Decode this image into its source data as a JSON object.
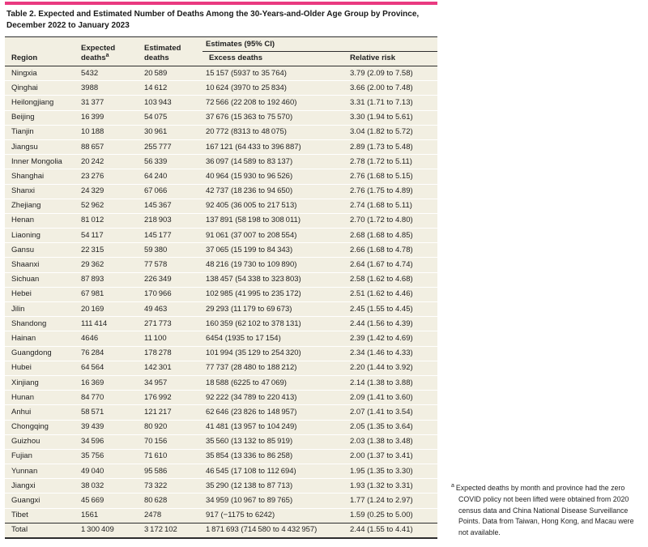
{
  "accent_color": "#e93a80",
  "colors": {
    "row_background": "#f2efe2",
    "row_separator": "#ffffff",
    "rule": "#2d2d2d",
    "text": "#1f1f1f"
  },
  "table": {
    "title": "Table 2. Expected and Estimated Number of Deaths Among the 30-Years-and-Older Age Group by Province, December 2022 to January 2023",
    "columns": {
      "region": "Region",
      "expected": "Expected deaths",
      "expected_sup": "a",
      "estimated": "Estimated deaths",
      "estimates_group": "Estimates (95% CI)",
      "excess": "Excess deaths",
      "relative": "Relative risk"
    },
    "rows": [
      [
        "Ningxia",
        "5432",
        "20 589",
        "15 157 (5937 to 35 764)",
        "3.79 (2.09 to 7.58)"
      ],
      [
        "Qinghai",
        "3988",
        "14 612",
        "10 624 (3970 to 25 834)",
        "3.66 (2.00 to 7.48)"
      ],
      [
        "Heilongjiang",
        "31 377",
        "103 943",
        "72 566 (22 208 to 192 460)",
        "3.31 (1.71 to 7.13)"
      ],
      [
        "Beijing",
        "16 399",
        "54 075",
        "37 676 (15 363 to 75 570)",
        "3.30 (1.94 to 5.61)"
      ],
      [
        "Tianjin",
        "10 188",
        "30 961",
        "20 772 (8313 to 48 075)",
        "3.04 (1.82 to 5.72)"
      ],
      [
        "Jiangsu",
        "88 657",
        "255 777",
        "167 121 (64 433 to 396 887)",
        "2.89 (1.73 to 5.48)"
      ],
      [
        "Inner Mongolia",
        "20 242",
        "56 339",
        "36 097 (14 589 to 83 137)",
        "2.78 (1.72 to 5.11)"
      ],
      [
        "Shanghai",
        "23 276",
        "64 240",
        "40 964 (15 930 to 96 526)",
        "2.76 (1.68 to 5.15)"
      ],
      [
        "Shanxi",
        "24 329",
        "67 066",
        "42 737 (18 236 to 94 650)",
        "2.76 (1.75 to 4.89)"
      ],
      [
        "Zhejiang",
        "52 962",
        "145 367",
        "92 405 (36 005 to 217 513)",
        "2.74 (1.68 to 5.11)"
      ],
      [
        "Henan",
        "81 012",
        "218 903",
        "137 891 (58 198 to 308 011)",
        "2.70 (1.72 to 4.80)"
      ],
      [
        "Liaoning",
        "54 117",
        "145 177",
        "91 061 (37 007 to 208 554)",
        "2.68 (1.68 to 4.85)"
      ],
      [
        "Gansu",
        "22 315",
        "59 380",
        "37 065 (15 199 to 84 343)",
        "2.66 (1.68 to 4.78)"
      ],
      [
        "Shaanxi",
        "29 362",
        "77 578",
        "48 216 (19 730 to 109 890)",
        "2.64 (1.67 to 4.74)"
      ],
      [
        "Sichuan",
        "87 893",
        "226 349",
        "138 457 (54 338 to 323 803)",
        "2.58 (1.62 to 4.68)"
      ],
      [
        "Hebei",
        "67 981",
        "170 966",
        "102 985 (41 995 to 235 172)",
        "2.51 (1.62 to 4.46)"
      ],
      [
        "Jilin",
        "20 169",
        "49 463",
        "29 293 (11 179 to 69 673)",
        "2.45 (1.55 to 4.45)"
      ],
      [
        "Shandong",
        "111 414",
        "271 773",
        "160 359 (62 102 to 378 131)",
        "2.44 (1.56 to 4.39)"
      ],
      [
        "Hainan",
        "4646",
        "11 100",
        "6454 (1935 to 17 154)",
        "2.39 (1.42 to 4.69)"
      ],
      [
        "Guangdong",
        "76 284",
        "178 278",
        "101 994 (35 129 to 254 320)",
        "2.34 (1.46 to 4.33)"
      ],
      [
        "Hubei",
        "64 564",
        "142 301",
        "77 737 (28 480 to 188 212)",
        "2.20 (1.44 to 3.92)"
      ],
      [
        "Xinjiang",
        "16 369",
        "34 957",
        "18 588 (6225 to 47 069)",
        "2.14 (1.38 to 3.88)"
      ],
      [
        "Hunan",
        "84 770",
        "176 992",
        "92 222 (34 789 to 220 413)",
        "2.09 (1.41 to 3.60)"
      ],
      [
        "Anhui",
        "58 571",
        "121 217",
        "62 646 (23 826 to 148 957)",
        "2.07 (1.41 to 3.54)"
      ],
      [
        "Chongqing",
        "39 439",
        "80 920",
        "41 481 (13 957 to 104 249)",
        "2.05 (1.35 to 3.64)"
      ],
      [
        "Guizhou",
        "34 596",
        "70 156",
        "35 560 (13 132 to 85 919)",
        "2.03 (1.38 to 3.48)"
      ],
      [
        "Fujian",
        "35 756",
        "71 610",
        "35 854 (13 336 to 86 258)",
        "2.00 (1.37 to 3.41)"
      ],
      [
        "Yunnan",
        "49 040",
        "95 586",
        "46 545 (17 108 to 112 694)",
        "1.95 (1.35 to 3.30)"
      ],
      [
        "Jiangxi",
        "38 032",
        "73 322",
        "35 290 (12 138 to 87 713)",
        "1.93 (1.32 to 3.31)"
      ],
      [
        "Guangxi",
        "45 669",
        "80 628",
        "34 959 (10 967 to 89 765)",
        "1.77 (1.24 to 2.97)"
      ],
      [
        "Tibet",
        "1561",
        "2478",
        "917 (−1175 to 6242)",
        "1.59 (0.25 to 5.00)"
      ],
      [
        "Total",
        "1 300 409",
        "3 172 102",
        "1 871 693 (714 580 to 4 432 957)",
        "2.44 (1.55 to 4.41)"
      ]
    ]
  },
  "footnote": {
    "marker": "a",
    "text": "Expected deaths by month and province had the zero COVID policy not been lifted were obtained from 2020 census data and China National Disease Surveillance Points. Data from Taiwan, Hong Kong, and Macau were not available."
  }
}
